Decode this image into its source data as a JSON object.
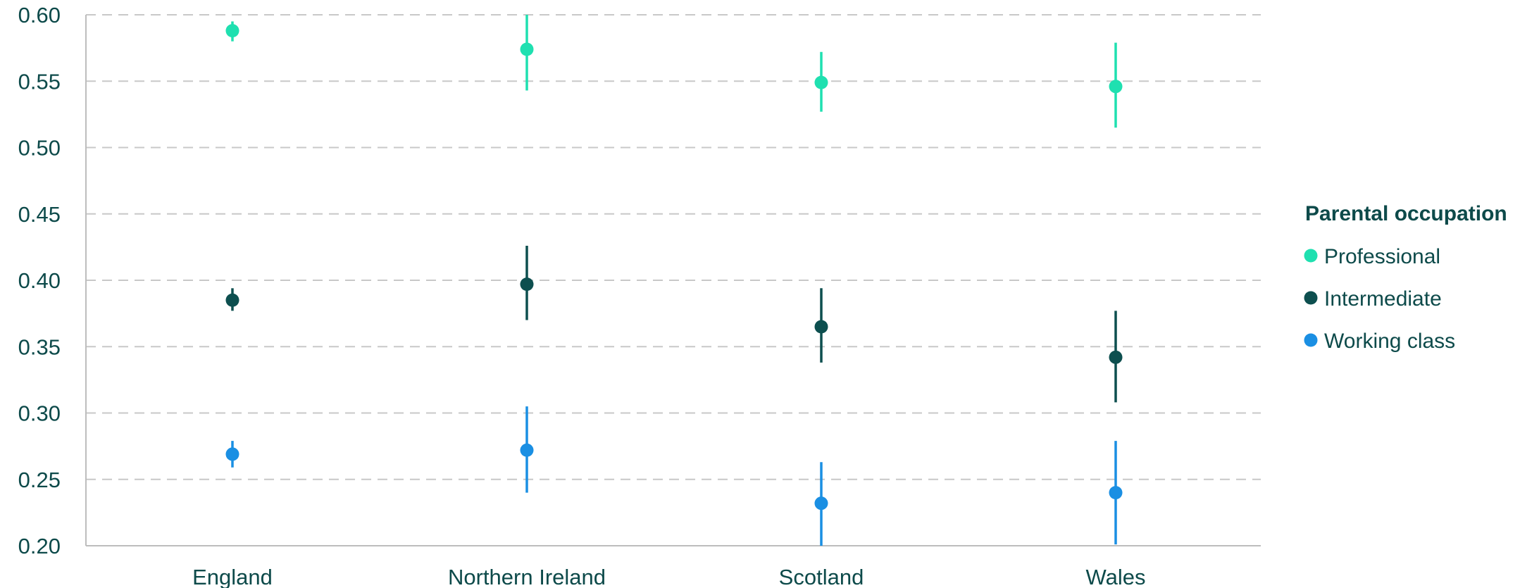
{
  "chart_data": {
    "type": "scatter",
    "categories": [
      "England",
      "Northern Ireland",
      "Scotland",
      "Wales"
    ],
    "ylim": [
      0.2,
      0.6
    ],
    "yticks": [
      "0.20",
      "0.25",
      "0.30",
      "0.35",
      "0.40",
      "0.45",
      "0.50",
      "0.55",
      "0.60"
    ],
    "grid": true,
    "legend": {
      "title": "Parental occupation",
      "placement": "right"
    },
    "series": [
      {
        "name": "Professional",
        "color": "#1fe0b0",
        "values": [
          0.588,
          0.574,
          0.549,
          0.546
        ],
        "lower": [
          0.58,
          0.543,
          0.527,
          0.515
        ],
        "upper": [
          0.595,
          0.6,
          0.572,
          0.579
        ]
      },
      {
        "name": "Intermediate",
        "color": "#0d4f4f",
        "values": [
          0.385,
          0.397,
          0.365,
          0.342
        ],
        "lower": [
          0.377,
          0.37,
          0.338,
          0.308
        ],
        "upper": [
          0.394,
          0.426,
          0.394,
          0.377
        ]
      },
      {
        "name": "Working class",
        "color": "#1a8fe3",
        "values": [
          0.269,
          0.272,
          0.232,
          0.24
        ],
        "lower": [
          0.259,
          0.24,
          0.2,
          0.201
        ],
        "upper": [
          0.279,
          0.305,
          0.263,
          0.279
        ]
      }
    ]
  }
}
